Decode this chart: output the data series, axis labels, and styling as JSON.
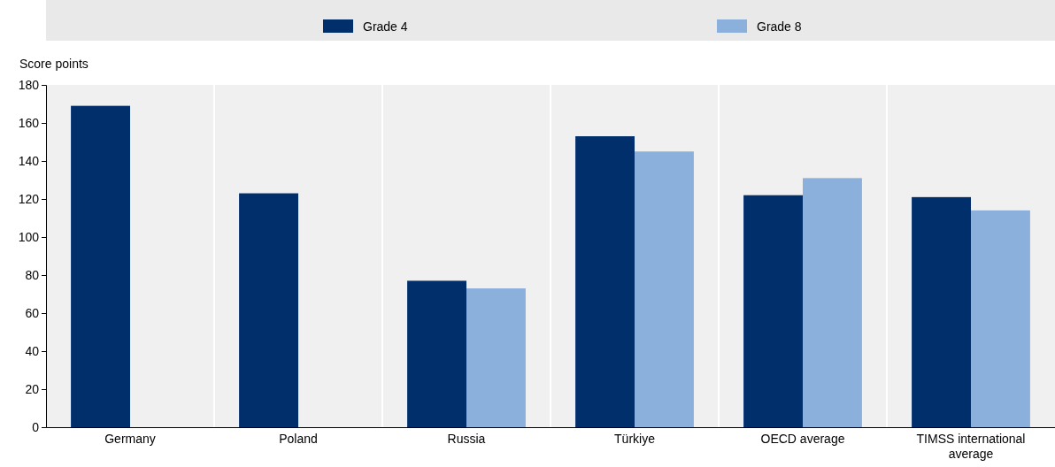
{
  "chart_data": {
    "type": "bar",
    "ylabel": "Score points",
    "categories": [
      "Germany",
      "Poland",
      "Russia",
      "Türkiye",
      "OECD average",
      "TIMSS international average"
    ],
    "series": [
      {
        "name": "Grade 4",
        "color": "#002f6c",
        "values": [
          169,
          123,
          77,
          153,
          122,
          121
        ]
      },
      {
        "name": "Grade 8",
        "color": "#8cb0dc",
        "values": [
          null,
          null,
          73,
          145,
          131,
          114
        ]
      }
    ],
    "ylim": [
      0,
      180
    ],
    "yticks": [
      0,
      20,
      40,
      60,
      80,
      100,
      120,
      140,
      160,
      180
    ],
    "grid": false,
    "legend": "top"
  }
}
